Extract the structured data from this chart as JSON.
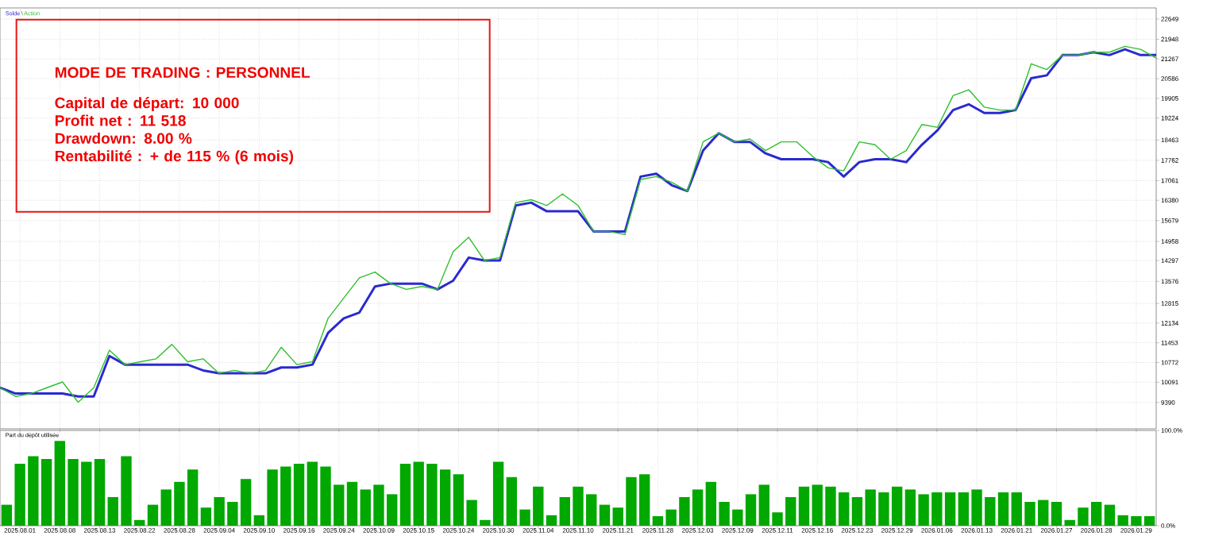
{
  "chart_data": [
    {
      "type": "line",
      "categories": [
        null,
        null,
        null,
        null,
        null,
        null,
        null,
        null,
        null,
        null,
        null,
        null,
        null,
        null,
        null,
        null,
        null,
        null,
        null,
        null,
        null,
        null,
        null,
        null,
        null,
        null,
        null,
        null,
        null,
        null,
        null,
        null,
        null,
        null,
        null,
        null,
        null,
        null,
        null,
        null,
        null,
        null,
        null,
        null,
        null,
        null,
        null,
        null,
        null,
        null,
        null,
        null,
        null,
        null,
        null,
        null,
        null,
        null,
        null,
        null,
        null,
        null,
        null,
        null,
        null,
        null,
        null,
        null,
        null,
        null,
        null,
        null,
        null,
        null,
        null
      ],
      "series": [
        {
          "name": "Solde",
          "color": "#2a2ad0",
          "values": [
            9900,
            9700,
            9700,
            9700,
            9700,
            9600,
            9600,
            11000,
            10700,
            10700,
            10700,
            10700,
            10700,
            10500,
            10400,
            10400,
            10400,
            10400,
            10600,
            10600,
            10700,
            11800,
            12300,
            12500,
            13400,
            13500,
            13500,
            13500,
            13300,
            13600,
            14400,
            14300,
            14300,
            16200,
            16300,
            16000,
            16000,
            16000,
            15300,
            15300,
            15300,
            17200,
            17300,
            16900,
            16700,
            18100,
            18700,
            18400,
            18400,
            18000,
            17800,
            17800,
            17800,
            17700,
            17200,
            17700,
            17800,
            17800,
            17700,
            18300,
            18800,
            19500,
            19700,
            19400,
            19400,
            19500,
            20600,
            20700,
            21400,
            21400,
            21500,
            21400,
            21600,
            21400,
            21400
          ]
        },
        {
          "name": "Action",
          "color": "#2fbf2f",
          "values": [
            9900,
            9600,
            9700,
            9900,
            10100,
            9400,
            9900,
            11200,
            10700,
            10800,
            10900,
            11400,
            10800,
            10900,
            10400,
            10500,
            10400,
            10500,
            11300,
            10700,
            10800,
            12300,
            13000,
            13700,
            13900,
            13500,
            13300,
            13400,
            13300,
            14600,
            15100,
            14300,
            14400,
            16300,
            16400,
            16200,
            16600,
            16200,
            15300,
            15300,
            15200,
            17100,
            17200,
            17000,
            16700,
            18400,
            18700,
            18400,
            18500,
            18100,
            18400,
            18400,
            17900,
            17500,
            17400,
            18400,
            18300,
            17800,
            18100,
            19000,
            18900,
            20000,
            20200,
            19600,
            19500,
            19500,
            21100,
            20900,
            21400,
            21400,
            21500,
            21500,
            21700,
            21600,
            21300
          ]
        }
      ],
      "ylim": [
        8480,
        23030
      ],
      "yticks": [
        22649,
        21948,
        21267,
        20586,
        19905,
        19224,
        18463,
        17762,
        17061,
        16380,
        15679,
        14958,
        14297,
        13576,
        12815,
        12134,
        11453,
        10772,
        10091,
        9390
      ],
      "tick_labels": "y",
      "grid": true,
      "legend": "top left",
      "marker": "none",
      "line_style": "solid",
      "annotations": [
        "MODE DE TRADING : PERSONNEL",
        "Capital de départ: 10 000",
        "Profit net : 11 518",
        "Drawdown: 8.00 %",
        "Rentabilité : + de 115 % (6 mois)"
      ]
    },
    {
      "type": "bar",
      "title": "Part du dépôt utilisée",
      "categories": [
        null,
        "2025.08.01",
        null,
        null,
        "2025.08.08",
        null,
        null,
        "2025.08.13",
        null,
        null,
        "2025.08.22",
        null,
        null,
        "2025.08.28",
        null,
        null,
        "2025.09.04",
        null,
        null,
        "2025.09.10",
        null,
        null,
        "2025.09.16",
        null,
        null,
        "2025.09.24",
        null,
        null,
        "2025.10.09",
        null,
        null,
        "2025.10.15",
        null,
        null,
        "2025.10.24",
        null,
        null,
        "2025.10.30",
        null,
        null,
        "2025.11.04",
        null,
        null,
        "2025.11.10",
        null,
        null,
        "2025.11.21",
        null,
        null,
        "2025.11.28",
        null,
        null,
        "2025.12.03",
        null,
        null,
        "2025.12.09",
        null,
        null,
        "2025.12.11",
        null,
        null,
        "2025.12.16",
        null,
        null,
        "2025.12.23",
        null,
        null,
        "2025.12.29",
        null,
        null,
        "2026.01.06",
        null,
        null,
        "2026.01.13",
        null,
        null,
        "2026.01.21",
        null,
        null,
        "2026.01.27",
        null,
        null,
        "2026.01.28",
        null,
        null,
        "2026.01.29",
        null
      ],
      "values": [
        22,
        65,
        73,
        70,
        89,
        70,
        67,
        70,
        30,
        73,
        6,
        22,
        38,
        46,
        59,
        19,
        30,
        25,
        49,
        11,
        59,
        62,
        65,
        67,
        62,
        43,
        46,
        38,
        43,
        33,
        65,
        67,
        65,
        59,
        54,
        27,
        6,
        67,
        51,
        17,
        41,
        11,
        30,
        41,
        33,
        22,
        19,
        51,
        54,
        10,
        17,
        30,
        38,
        46,
        25,
        17,
        33,
        43,
        14,
        30,
        41,
        43,
        41,
        35,
        30,
        38,
        35,
        41,
        38,
        33,
        35,
        35,
        35,
        38,
        30,
        35,
        35,
        25,
        27,
        25,
        6,
        19,
        25,
        22,
        11,
        10,
        10
      ],
      "color": "#00a800",
      "ylim": [
        0,
        100
      ],
      "yticks": [
        {
          "value": 100,
          "label": "100.0%"
        },
        {
          "value": 0,
          "label": "0.0%"
        }
      ],
      "grid": true
    }
  ]
}
